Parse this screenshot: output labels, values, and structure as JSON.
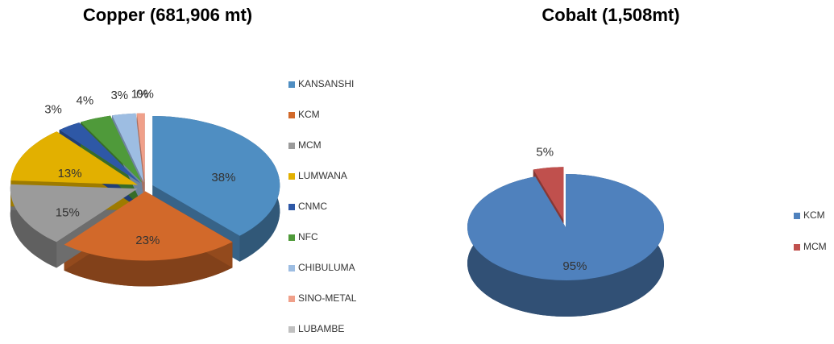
{
  "chart_data": [
    {
      "type": "pie",
      "title": "Copper (681,906 mt)",
      "categories": [
        "KANSANSHI",
        "KCM",
        "MCM",
        "LUMWANA",
        "CNMC",
        "NFC",
        "CHIBULUMA",
        "SINO-METAL",
        "LUBAMBE"
      ],
      "values": [
        38,
        23,
        15,
        13,
        3,
        4,
        3,
        1,
        0
      ],
      "value_labels": [
        "38%",
        "23%",
        "15%",
        "13%",
        "3%",
        "4%",
        "3%",
        "1%",
        "0%"
      ],
      "colors": [
        "#4f8ec2",
        "#d2692a",
        "#9b9b9b",
        "#e2b000",
        "#2e58a6",
        "#4f9a3a",
        "#9dbde2",
        "#f0a08a",
        "#c0c0c0"
      ],
      "legend": "right"
    },
    {
      "type": "pie",
      "title": "Cobalt (1,508mt)",
      "categories": [
        "KCM",
        "MCM"
      ],
      "values": [
        95,
        5
      ],
      "value_labels": [
        "95%",
        "5%"
      ],
      "colors": [
        "#4f81bd",
        "#c0504d"
      ],
      "legend": "right"
    }
  ]
}
